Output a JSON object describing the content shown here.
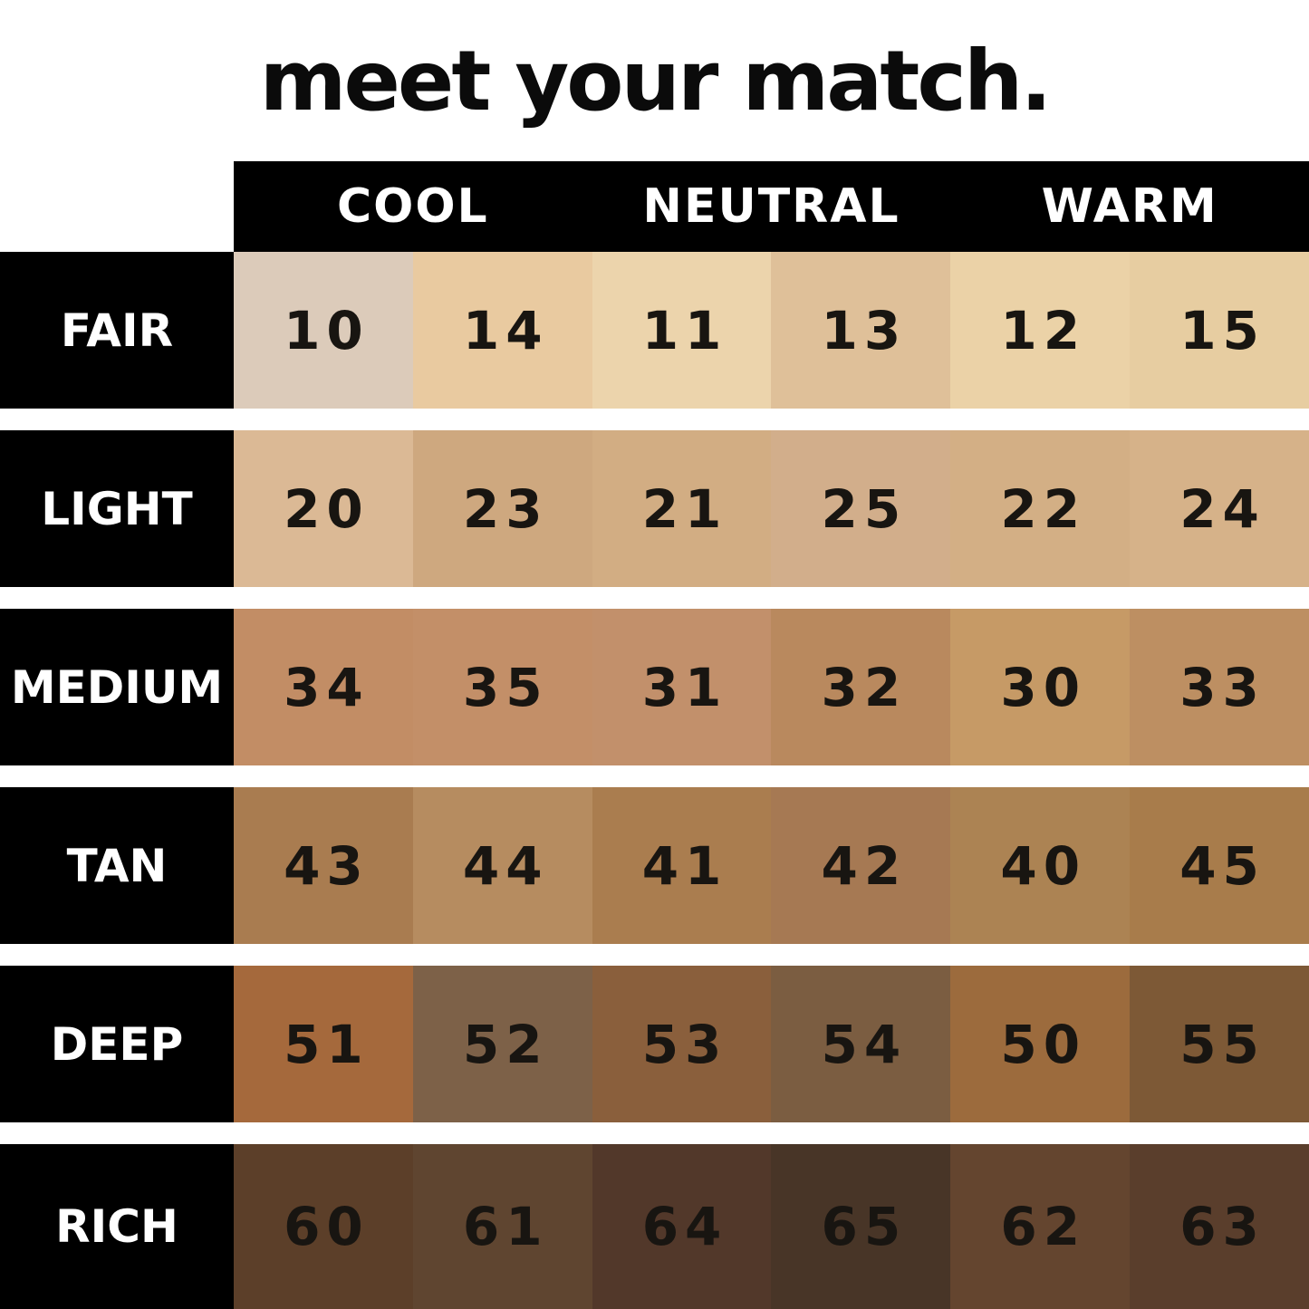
{
  "chart_data": {
    "type": "table",
    "title": "meet your match.",
    "column_groups": [
      "COOL",
      "NEUTRAL",
      "WARM"
    ],
    "row_labels": [
      "FAIR",
      "LIGHT",
      "MEDIUM",
      "TAN",
      "DEEP",
      "RICH"
    ],
    "rows": [
      {
        "label": "FAIR",
        "swatches": [
          {
            "shade": "10",
            "color": "#DCCBBA"
          },
          {
            "shade": "14",
            "color": "#E9CAA0"
          },
          {
            "shade": "11",
            "color": "#ECD4AC"
          },
          {
            "shade": "13",
            "color": "#DFC099"
          },
          {
            "shade": "12",
            "color": "#EBD2A7"
          },
          {
            "shade": "15",
            "color": "#E7CDA1"
          }
        ]
      },
      {
        "label": "LIGHT",
        "swatches": [
          {
            "shade": "20",
            "color": "#DBB995"
          },
          {
            "shade": "23",
            "color": "#CEA87F"
          },
          {
            "shade": "21",
            "color": "#D2AD83"
          },
          {
            "shade": "25",
            "color": "#D2AE8B"
          },
          {
            "shade": "22",
            "color": "#D3AF85"
          },
          {
            "shade": "24",
            "color": "#D6B289"
          }
        ]
      },
      {
        "label": "MEDIUM",
        "swatches": [
          {
            "shade": "34",
            "color": "#C28D65"
          },
          {
            "shade": "35",
            "color": "#C38F68"
          },
          {
            "shade": "31",
            "color": "#C2906B"
          },
          {
            "shade": "32",
            "color": "#B9895E"
          },
          {
            "shade": "30",
            "color": "#C69A66"
          },
          {
            "shade": "33",
            "color": "#BD8F62"
          }
        ]
      },
      {
        "label": "TAN",
        "swatches": [
          {
            "shade": "43",
            "color": "#A97C50"
          },
          {
            "shade": "44",
            "color": "#B68C60"
          },
          {
            "shade": "41",
            "color": "#AA7D4F"
          },
          {
            "shade": "42",
            "color": "#A67953"
          },
          {
            "shade": "40",
            "color": "#AC8353"
          },
          {
            "shade": "45",
            "color": "#A87C4B"
          }
        ]
      },
      {
        "label": "DEEP",
        "swatches": [
          {
            "shade": "51",
            "color": "#A5693C"
          },
          {
            "shade": "52",
            "color": "#7D6148"
          },
          {
            "shade": "53",
            "color": "#8A5F3C"
          },
          {
            "shade": "54",
            "color": "#7B5D41"
          },
          {
            "shade": "50",
            "color": "#9C6B3D"
          },
          {
            "shade": "55",
            "color": "#7D5936"
          }
        ]
      },
      {
        "label": "RICH",
        "swatches": [
          {
            "shade": "60",
            "color": "#5C3F29"
          },
          {
            "shade": "61",
            "color": "#5F4530"
          },
          {
            "shade": "64",
            "color": "#52382A"
          },
          {
            "shade": "65",
            "color": "#483527"
          },
          {
            "shade": "62",
            "color": "#64452F"
          },
          {
            "shade": "63",
            "color": "#5A3E2C"
          }
        ]
      }
    ]
  },
  "colors": {
    "background": "#FFFFFF",
    "header_bg": "#000000",
    "header_text": "#FFFFFF",
    "label_bg": "#000000",
    "label_text": "#FFFFFF",
    "number_text": "#181511",
    "title_text": "#0B0B0B"
  }
}
